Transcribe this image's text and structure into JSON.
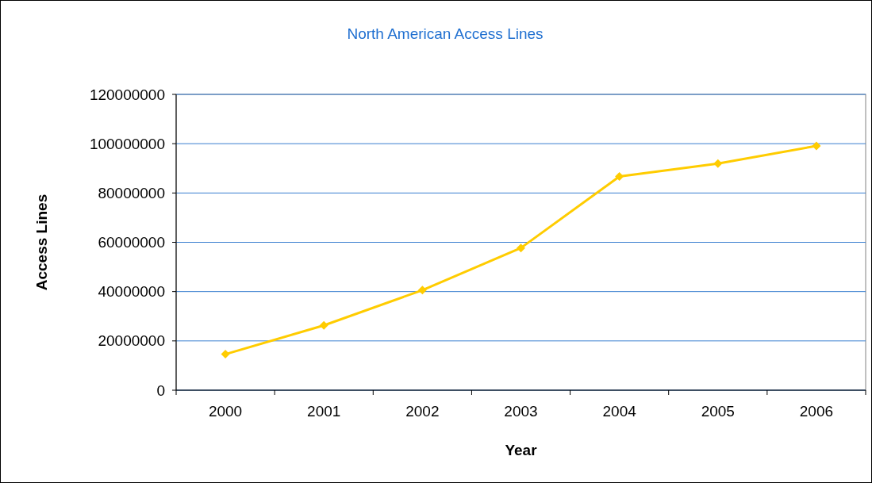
{
  "chart_data": {
    "type": "line",
    "title": "North American Access Lines",
    "xlabel": "Year",
    "ylabel": "Access Lines",
    "categories": [
      "2000",
      "2001",
      "2002",
      "2003",
      "2004",
      "2005",
      "2006"
    ],
    "series": [
      {
        "color": "#ffcc00",
        "values": [
          14600000,
          26300000,
          40600000,
          57700000,
          86700000,
          91900000,
          99100000
        ]
      }
    ],
    "ylim": [
      0,
      120000000
    ],
    "yticks": [
      0,
      20000000,
      40000000,
      60000000,
      80000000,
      100000000,
      120000000
    ],
    "grid": "y",
    "marker": "diamond",
    "line_style": "solid"
  }
}
